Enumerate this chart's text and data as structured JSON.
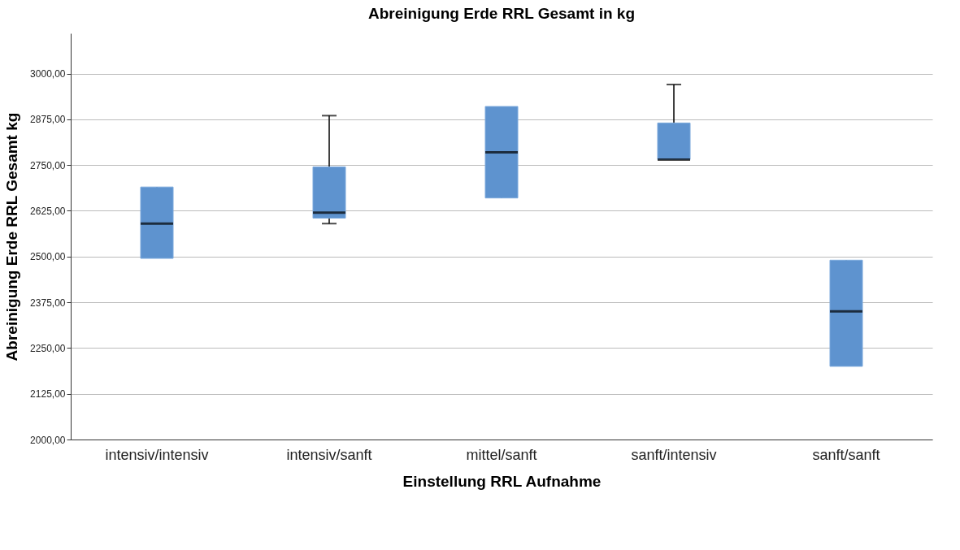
{
  "chart_data": {
    "type": "box",
    "title": "Abreinigung Erde RRL Gesamt in kg",
    "xlabel": "Einstellung RRL Aufnahme",
    "ylabel": "Abreinigung Erde RRL Gesamt kg",
    "categories": [
      "intensiv/intensiv",
      "intensiv/sanft",
      "mittel/sanft",
      "sanft/intensiv",
      "sanft/sanft"
    ],
    "boxes": [
      {
        "low": 2495,
        "q1": 2495,
        "median": 2590,
        "q3": 2690,
        "high": 2690
      },
      {
        "low": 2590,
        "q1": 2605,
        "median": 2620,
        "q3": 2745,
        "high": 2885
      },
      {
        "low": 2660,
        "q1": 2660,
        "median": 2785,
        "q3": 2910,
        "high": 2910
      },
      {
        "low": 2765,
        "q1": 2765,
        "median": 2765,
        "q3": 2865,
        "high": 2970
      },
      {
        "low": 2200,
        "q1": 2200,
        "median": 2350,
        "q3": 2490,
        "high": 2490
      }
    ],
    "color": "#5e93cf",
    "ylim": [
      2000,
      3110
    ],
    "yticks": [
      {
        "value": 2000,
        "label": "2000,00"
      },
      {
        "value": 2125,
        "label": "2125,00"
      },
      {
        "value": 2250,
        "label": "2250,00"
      },
      {
        "value": 2375,
        "label": "2375,00"
      },
      {
        "value": 2500,
        "label": "2500,00"
      },
      {
        "value": 2625,
        "label": "2625,00"
      },
      {
        "value": 2750,
        "label": "2750,00"
      },
      {
        "value": 2875,
        "label": "2875,00"
      },
      {
        "value": 3000,
        "label": "3000,00"
      }
    ],
    "grid": "y"
  }
}
